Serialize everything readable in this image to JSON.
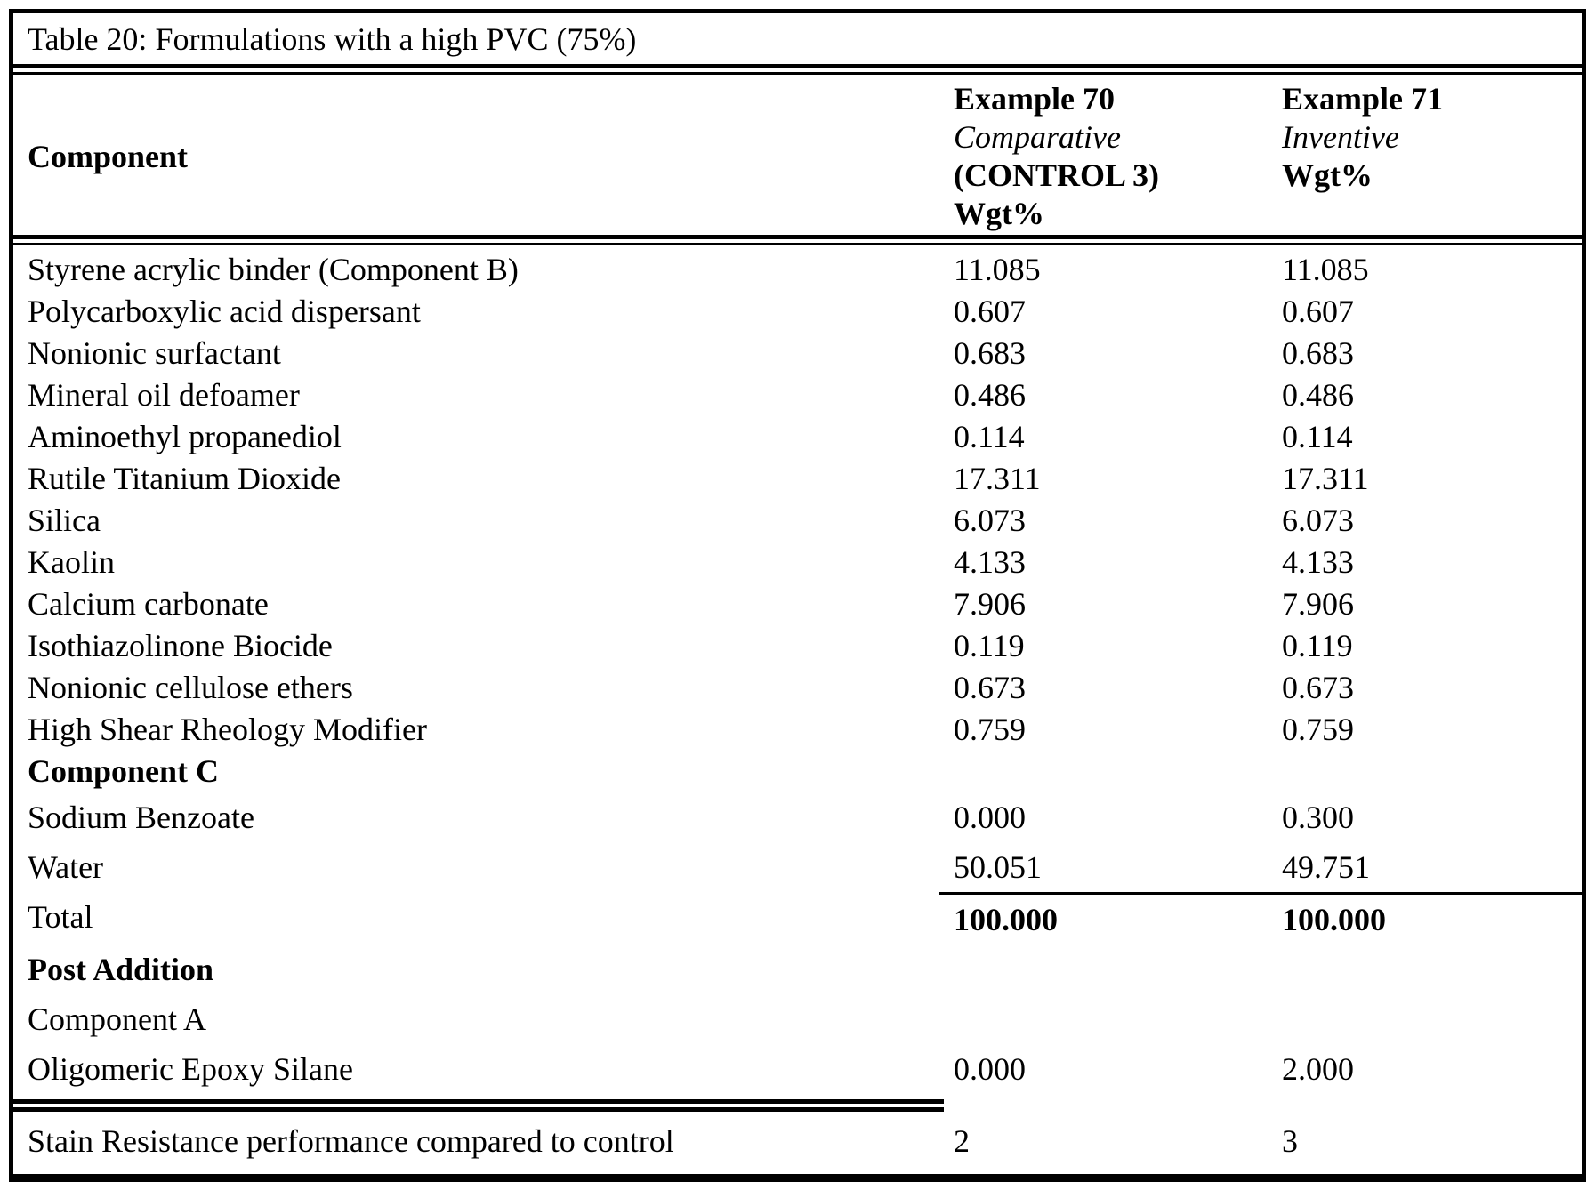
{
  "colors": {
    "text": "#000000",
    "background": "#ffffff",
    "border": "#000000"
  },
  "table": {
    "title": "Table 20: Formulations with a high PVC (75%)",
    "header": {
      "component_label": "Component",
      "control_lines": [
        "Example 70",
        "Comparative",
        "(CONTROL 3)",
        "Wgt%"
      ],
      "inventive_lines": [
        "Example 71",
        "Inventive",
        "Wgt%"
      ]
    },
    "rows": [
      {
        "label": "Styrene acrylic binder (Component B)",
        "control": "11.085",
        "inventive": "11.085",
        "section": "main"
      },
      {
        "label": "Polycarboxylic acid dispersant",
        "control": "0.607",
        "inventive": "0.607",
        "section": "main"
      },
      {
        "label": "Nonionic surfactant",
        "control": "0.683",
        "inventive": "0.683",
        "section": "main"
      },
      {
        "label": "Mineral oil defoamer",
        "control": "0.486",
        "inventive": "0.486",
        "section": "main"
      },
      {
        "label": "Aminoethyl propanediol",
        "control": "0.114",
        "inventive": "0.114",
        "section": "main"
      },
      {
        "label": "Rutile Titanium Dioxide",
        "control": "17.311",
        "inventive": "17.311",
        "section": "main"
      },
      {
        "label": "Silica",
        "control": "6.073",
        "inventive": "6.073",
        "section": "main"
      },
      {
        "label": "Kaolin",
        "control": "4.133",
        "inventive": "4.133",
        "section": "main"
      },
      {
        "label": "Calcium carbonate",
        "control": "7.906",
        "inventive": "7.906",
        "section": "main"
      },
      {
        "label": "Isothiazolinone Biocide",
        "control": "0.119",
        "inventive": "0.119",
        "section": "main"
      },
      {
        "label": "Nonionic cellulose ethers",
        "control": "0.673",
        "inventive": "0.673",
        "section": "main"
      },
      {
        "label": "High Shear Rheology Modifier",
        "control": "0.759",
        "inventive": "0.759",
        "section": "main"
      },
      {
        "label": "Component C",
        "control": "",
        "inventive": "",
        "label_style": "bold",
        "section": "main"
      },
      {
        "label": "Sodium Benzoate",
        "control": "0.000",
        "inventive": "0.300",
        "section": "lower"
      },
      {
        "label": "Water",
        "control": "50.051",
        "inventive": "49.751",
        "section": "lower"
      },
      {
        "label": "Total",
        "control": "100.000",
        "inventive": "100.000",
        "value_style": "bold",
        "rule_above_values": true,
        "section": "lower"
      },
      {
        "label": "Post Addition",
        "control": "",
        "inventive": "",
        "label_style": "bold",
        "section": "lower"
      },
      {
        "label": "Component A",
        "control": "",
        "inventive": "",
        "section": "lower"
      },
      {
        "label": "Oligomeric Epoxy Silane",
        "control": "0.000",
        "inventive": "2.000",
        "section": "lower"
      }
    ],
    "stain_row": {
      "label": "Stain Resistance performance compared to control",
      "control": "2",
      "inventive": "3"
    }
  }
}
